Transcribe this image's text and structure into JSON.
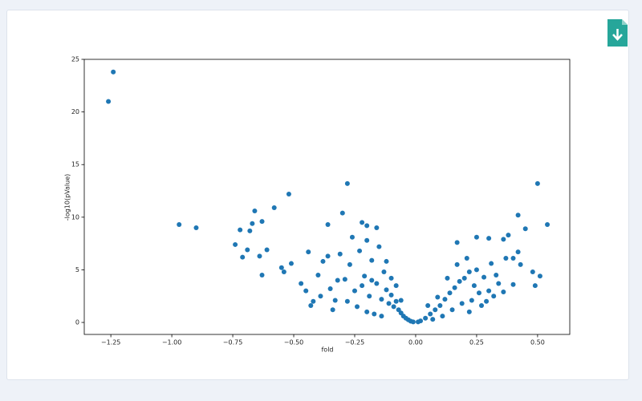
{
  "chart_data": {
    "type": "scatter",
    "x_label": "fold",
    "y_label": "-log10(pValue)",
    "color": "#1f77b4",
    "xlim": [
      -1.359,
      0.632
    ],
    "ylim": [
      -1.14,
      25.0
    ],
    "xticks": [
      {
        "value": -1.25,
        "label": "−1.25"
      },
      {
        "value": -1.0,
        "label": "−1.00"
      },
      {
        "value": -0.75,
        "label": "−0.75"
      },
      {
        "value": -0.5,
        "label": "−0.50"
      },
      {
        "value": -0.25,
        "label": "−0.25"
      },
      {
        "value": 0,
        "label": "0.00"
      },
      {
        "value": 0.25,
        "label": "0.25"
      },
      {
        "value": 0.5,
        "label": "0.50"
      }
    ],
    "yticks": [
      0,
      5,
      10,
      15,
      20,
      25
    ],
    "x": [
      -1.24,
      -1.26,
      -0.97,
      -0.9,
      -0.74,
      -0.72,
      -0.71,
      -0.69,
      -0.68,
      -0.67,
      -0.66,
      -0.64,
      -0.63,
      -0.63,
      -0.61,
      -0.58,
      -0.55,
      -0.54,
      -0.52,
      -0.51,
      -0.28,
      -0.3,
      -0.36,
      -0.22,
      -0.2,
      -0.16,
      0.5,
      0.54,
      0.42,
      0.45,
      0.38,
      0.36,
      0.3,
      0.25,
      0.17,
      0.48,
      0.51,
      0.49,
      0.4,
      0.37,
      0.42,
      0.4,
      0.43,
      0.21,
      -0.45,
      -0.42,
      -0.4,
      -0.38,
      -0.35,
      -0.33,
      -0.31,
      -0.29,
      -0.27,
      -0.25,
      -0.23,
      -0.21,
      -0.19,
      -0.18,
      -0.16,
      -0.15,
      -0.14,
      -0.13,
      -0.12,
      -0.11,
      -0.1,
      -0.09,
      -0.08,
      -0.07,
      -0.06,
      -0.05,
      -0.04,
      -0.03,
      -0.02,
      -0.01,
      -0.24,
      -0.2,
      -0.17,
      -0.14,
      -0.28,
      -0.34,
      -0.44,
      -0.47,
      -0.43,
      -0.39,
      -0.26,
      -0.2,
      -0.12,
      -0.1,
      -0.08,
      -0.06,
      -0.22,
      -0.18,
      -0.32,
      -0.36,
      0.01,
      0.02,
      0.04,
      0.06,
      0.08,
      0.1,
      0.12,
      0.14,
      0.16,
      0.18,
      0.2,
      0.22,
      0.24,
      0.26,
      0.28,
      0.3,
      0.32,
      0.34,
      0.36,
      0.15,
      0.19,
      0.23,
      0.27,
      0.11,
      0.07,
      0.13,
      0.17,
      0.25,
      0.31,
      0.22,
      0.29,
      0.33,
      0.09,
      0.05
    ],
    "values": [
      23.8,
      21.0,
      9.3,
      9.0,
      7.4,
      8.8,
      6.2,
      6.9,
      8.7,
      9.4,
      10.6,
      6.3,
      4.5,
      9.6,
      6.9,
      10.9,
      5.2,
      4.8,
      12.2,
      5.6,
      13.2,
      10.4,
      9.3,
      9.5,
      9.2,
      9.0,
      13.2,
      9.3,
      10.2,
      8.9,
      8.3,
      7.9,
      8.0,
      8.1,
      7.6,
      4.8,
      4.4,
      3.5,
      6.1,
      6.1,
      6.7,
      3.6,
      5.5,
      6.1,
      3.0,
      2.0,
      4.5,
      5.8,
      3.2,
      2.1,
      6.5,
      4.1,
      5.5,
      3.0,
      6.8,
      4.4,
      2.5,
      5.9,
      3.7,
      7.2,
      2.2,
      4.8,
      3.1,
      1.8,
      2.6,
      1.5,
      2.0,
      1.2,
      0.9,
      0.6,
      0.4,
      0.25,
      0.12,
      0.05,
      1.5,
      1.0,
      0.8,
      0.6,
      2.0,
      1.2,
      6.7,
      3.7,
      1.6,
      2.5,
      8.1,
      7.8,
      5.8,
      4.2,
      3.5,
      2.1,
      3.5,
      4.0,
      4.0,
      6.3,
      0.05,
      0.15,
      0.4,
      0.8,
      1.2,
      1.6,
      2.2,
      2.8,
      3.3,
      3.9,
      4.2,
      4.8,
      3.5,
      2.8,
      4.3,
      3.0,
      2.5,
      3.7,
      2.9,
      1.2,
      1.8,
      2.1,
      1.6,
      0.6,
      0.3,
      4.2,
      5.5,
      5.0,
      5.6,
      1.0,
      2.0,
      4.5,
      2.4,
      1.6
    ]
  }
}
